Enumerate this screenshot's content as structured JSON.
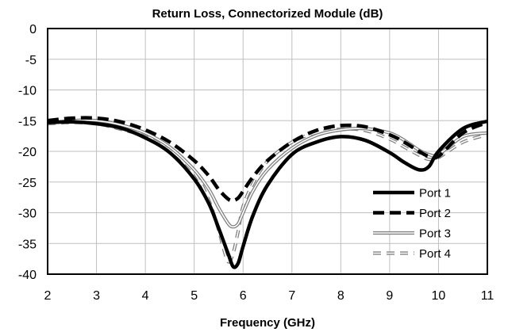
{
  "chart_data": {
    "type": "line",
    "title": "Return Loss, Connectorized Module (dB)",
    "xlabel": "Frequency (GHz)",
    "ylabel": "",
    "xlim": [
      2,
      11
    ],
    "ylim": [
      -40,
      0
    ],
    "xticks": [
      2,
      3,
      4,
      5,
      6,
      7,
      8,
      9,
      10,
      11
    ],
    "yticks": [
      0,
      -5,
      -10,
      -15,
      -20,
      -25,
      -30,
      -35,
      -40
    ],
    "grid": true,
    "legend_position": "bottom-right",
    "series": [
      {
        "name": "Port 1",
        "style": "thick-solid",
        "color": "#000000",
        "x": [
          2,
          2.5,
          3,
          3.5,
          4,
          4.5,
          5,
          5.3,
          5.5,
          5.7,
          5.8,
          5.9,
          6.0,
          6.2,
          6.5,
          7,
          7.5,
          8,
          8.5,
          9,
          9.3,
          9.6,
          9.8,
          10,
          10.5,
          11
        ],
        "y": [
          -15.3,
          -15.2,
          -15.5,
          -16.2,
          -17.8,
          -20.2,
          -24.5,
          -28.5,
          -32.5,
          -36.8,
          -38.8,
          -38.2,
          -35.5,
          -30.5,
          -25.5,
          -20.5,
          -18.5,
          -17.6,
          -18.2,
          -20.2,
          -21.8,
          -23.0,
          -22.5,
          -20.0,
          -16.3,
          -15.1
        ]
      },
      {
        "name": "Port 2",
        "style": "thick-dashed",
        "color": "#000000",
        "x": [
          2,
          2.5,
          3,
          3.5,
          4,
          4.5,
          5,
          5.3,
          5.5,
          5.7,
          5.8,
          5.9,
          6.0,
          6.2,
          6.5,
          7,
          7.5,
          8,
          8.5,
          9,
          9.3,
          9.6,
          9.8,
          10,
          10.5,
          11
        ],
        "y": [
          -15.0,
          -14.6,
          -14.6,
          -15.2,
          -16.5,
          -18.5,
          -21.5,
          -24.0,
          -26.2,
          -27.8,
          -28.0,
          -27.6,
          -26.5,
          -24.2,
          -21.5,
          -18.5,
          -16.6,
          -15.8,
          -16.0,
          -17.3,
          -18.5,
          -20.0,
          -20.8,
          -20.8,
          -17.0,
          -15.3
        ]
      },
      {
        "name": "Port 3",
        "style": "double-line",
        "color": "#808080",
        "x": [
          2,
          2.5,
          3,
          3.5,
          4,
          4.5,
          5,
          5.3,
          5.5,
          5.7,
          5.8,
          5.9,
          6.0,
          6.2,
          6.5,
          7,
          7.5,
          8,
          8.5,
          9,
          9.3,
          9.6,
          9.8,
          10,
          10.5,
          11
        ],
        "y": [
          -15.5,
          -15.0,
          -15.0,
          -15.7,
          -17.0,
          -19.3,
          -23.0,
          -26.2,
          -29.2,
          -31.8,
          -32.3,
          -31.8,
          -30.0,
          -26.5,
          -23.0,
          -19.5,
          -17.4,
          -16.5,
          -16.3,
          -17.0,
          -18.2,
          -19.8,
          -20.5,
          -20.5,
          -17.6,
          -17.0
        ]
      },
      {
        "name": "Port 4",
        "style": "hollow-dashed",
        "color": "#808080",
        "x": [
          2,
          2.5,
          3,
          3.5,
          4,
          4.5,
          5,
          5.3,
          5.5,
          5.6,
          5.7,
          5.8,
          5.9,
          6.0,
          6.2,
          6.5,
          7,
          7.5,
          8,
          8.5,
          9,
          9.3,
          9.6,
          9.8,
          10,
          10.5,
          11
        ],
        "y": [
          -15.5,
          -15.3,
          -15.5,
          -16.4,
          -17.6,
          -19.8,
          -23.5,
          -28.0,
          -32.8,
          -35.8,
          -38.0,
          -36.5,
          -33.0,
          -29.0,
          -25.3,
          -21.6,
          -18.5,
          -17.0,
          -16.4,
          -16.6,
          -18.0,
          -19.3,
          -20.6,
          -21.3,
          -21.0,
          -18.5,
          -17.3
        ]
      }
    ]
  }
}
